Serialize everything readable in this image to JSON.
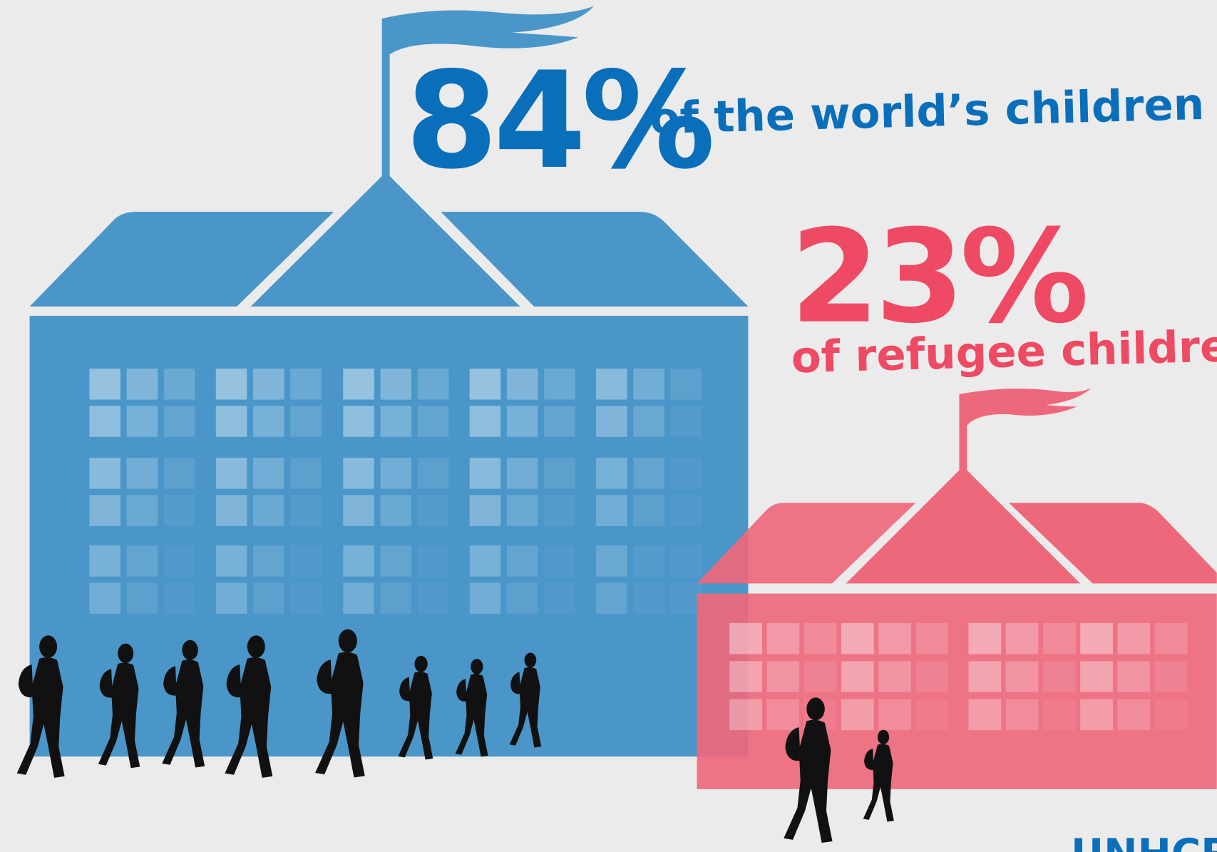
{
  "headline_world": {
    "percent": "84%",
    "label": "of the world’s children"
  },
  "headline_refugee": {
    "percent": "23%",
    "label": "of refugee children"
  },
  "logo": {
    "text": "UNHCR"
  }
}
